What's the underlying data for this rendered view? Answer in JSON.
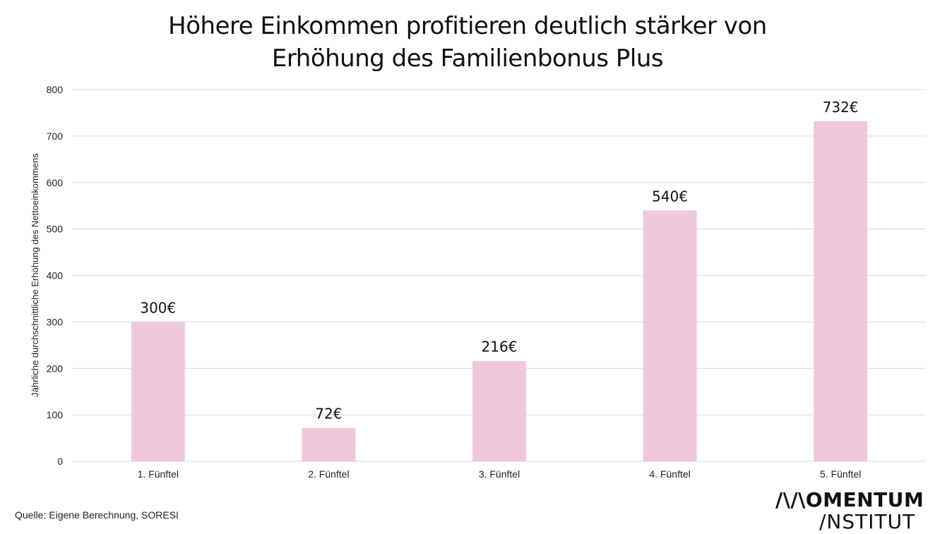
{
  "chart_data": {
    "type": "bar",
    "title_lines": [
      "Höhere Einkommen profitieren deutlich stärker von",
      "Erhöhung des Familienbonus Plus"
    ],
    "ylabel": "Jährliche durchschnittliche Erhöhung des Nettoeinkommens",
    "xlabel": "",
    "categories": [
      "1. Fünftel",
      "2. Fünftel",
      "3. Fünftel",
      "4. Fünftel",
      "5. Fünftel"
    ],
    "values": [
      300,
      72,
      216,
      540,
      732
    ],
    "data_labels": [
      "300€",
      "72€",
      "216€",
      "540€",
      "732€"
    ],
    "ylim": [
      0,
      800
    ],
    "yticks": [
      0,
      100,
      200,
      300,
      400,
      500,
      600,
      700,
      800
    ],
    "grid": true,
    "bar_color": "#f0c8dc",
    "grid_color": "#d9d9d9"
  },
  "footer": {
    "source": "Quelle: Eigene Berechnung, SORESI",
    "logo_line1": "/\\/\\OMENTUM",
    "logo_line2": "/NSTITUT"
  }
}
